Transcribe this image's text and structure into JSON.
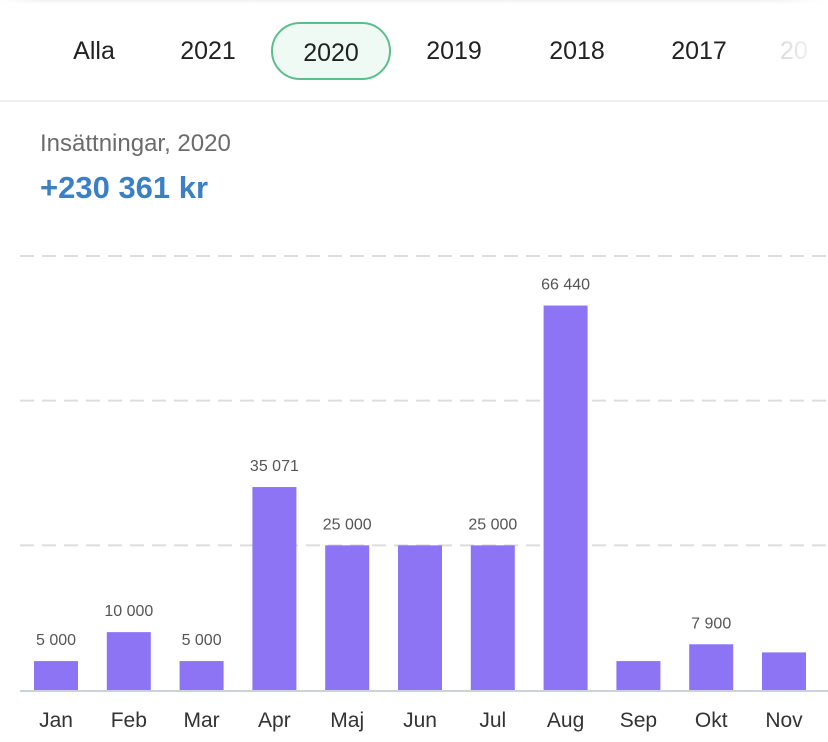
{
  "tabs": {
    "items": [
      "Alla",
      "2021",
      "2020",
      "2019",
      "2018",
      "2017",
      "20"
    ],
    "selected": "2020"
  },
  "summary": {
    "label": "Insättningar, 2020",
    "value": "+230 361 kr"
  },
  "colors": {
    "bar": "#8c74f4",
    "accent_text": "#3b7fc4",
    "tab_active_border": "#5cbd8d",
    "tab_active_bg": "#f0faf5",
    "gridline": "#dddddd",
    "axis": "#c8d3de"
  },
  "chart_data": {
    "type": "bar",
    "title": "",
    "xlabel": "",
    "ylabel": "",
    "categories": [
      "Jan",
      "Feb",
      "Mar",
      "Apr",
      "Maj",
      "Jun",
      "Jul",
      "Aug",
      "Sep",
      "Okt",
      "Nov"
    ],
    "values": [
      5000,
      10000,
      5000,
      35071,
      25000,
      25000,
      25000,
      66440,
      5000,
      7900,
      6500
    ],
    "data_labels": [
      "5 000",
      "10 000",
      "5 000",
      "35 071",
      "25 000",
      "",
      "25 000",
      "66 440",
      "",
      "7 900",
      ""
    ],
    "ylim": [
      0,
      75000
    ],
    "gridlines": [
      25000,
      50000,
      75000
    ],
    "grid": true,
    "legend": "none"
  }
}
